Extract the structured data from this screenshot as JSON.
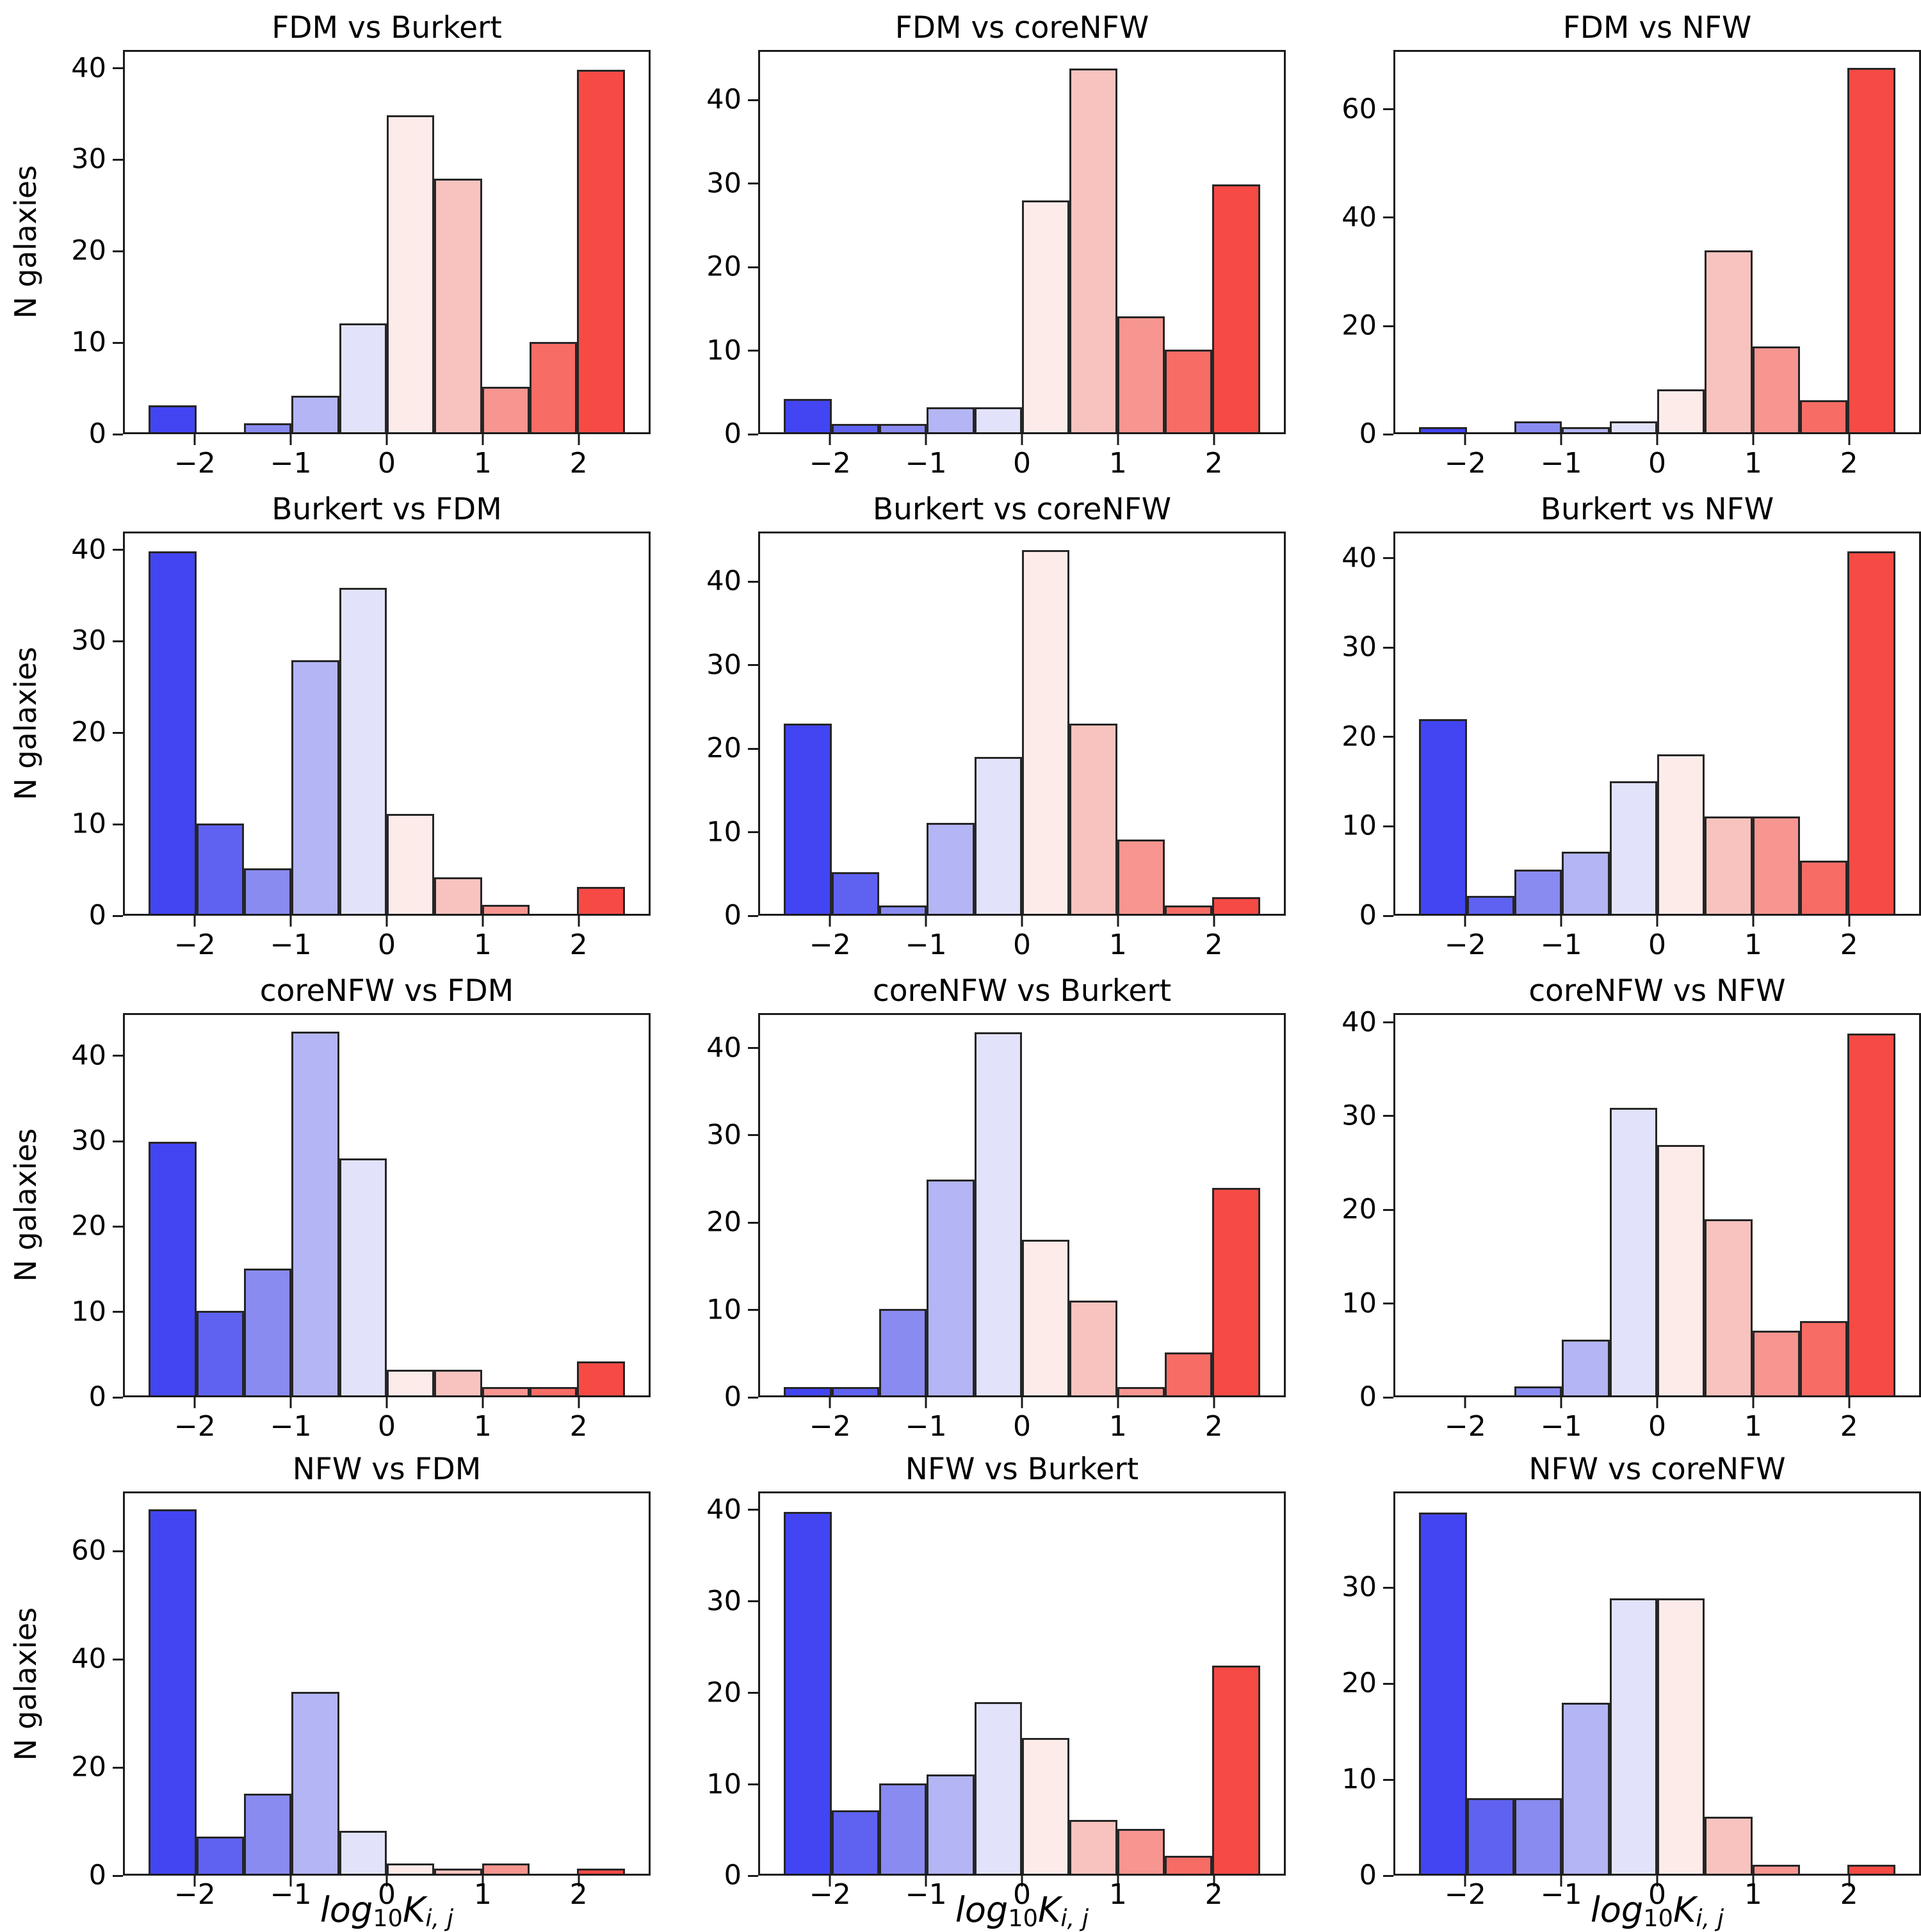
{
  "chart_data": {
    "type": "bar",
    "subtype": "histogram-grid",
    "grid": {
      "rows": 4,
      "cols": 3
    },
    "ylabel": "N galaxies",
    "xlabel": "log10 K_i,j",
    "xlabel_parts": {
      "base": "log",
      "base_sub": "10",
      "var": "K",
      "var_sub": "i, j"
    },
    "bin_edges": [
      -2.5,
      -2.0,
      -1.5,
      -1.0,
      -0.5,
      0.0,
      0.5,
      1.0,
      1.5,
      2.0,
      2.5
    ],
    "bin_width": 0.5,
    "xlim": [
      -2.75,
      2.75
    ],
    "x_tick_values": [
      -2,
      -1,
      0,
      1,
      2
    ],
    "x_tick_labels": [
      "−2",
      "−1",
      "0",
      "1",
      "2"
    ],
    "grid_lines": "off",
    "legend": "none",
    "bar_colors": [
      "#4245f1",
      "#5f62f1",
      "#898bf0",
      "#b4b5f4",
      "#e2e3fa",
      "#fcebe9",
      "#f8c3be",
      "#f79590",
      "#f76c65",
      "#f64a45"
    ],
    "edge_color": "#262626",
    "panels": [
      {
        "title": "FDM vs Burkert",
        "row": 0,
        "col": 0,
        "yticks": [
          0,
          10,
          20,
          30,
          40
        ],
        "ymax": 42,
        "values": [
          3,
          0,
          1,
          4,
          12,
          35,
          28,
          5,
          10,
          40
        ]
      },
      {
        "title": "FDM vs coreNFW",
        "row": 0,
        "col": 1,
        "yticks": [
          0,
          10,
          20,
          30,
          40
        ],
        "ymax": 46,
        "values": [
          4,
          1,
          1,
          3,
          3,
          28,
          44,
          14,
          10,
          30
        ]
      },
      {
        "title": "FDM vs NFW",
        "row": 0,
        "col": 2,
        "yticks": [
          0,
          20,
          40,
          60
        ],
        "ymax": 71,
        "values": [
          1,
          0,
          2,
          1,
          2,
          8,
          34,
          16,
          6,
          68
        ]
      },
      {
        "title": "Burkert vs FDM",
        "row": 1,
        "col": 0,
        "yticks": [
          0,
          10,
          20,
          30,
          40
        ],
        "ymax": 42,
        "values": [
          40,
          10,
          5,
          28,
          36,
          11,
          4,
          1,
          0,
          3
        ]
      },
      {
        "title": "Burkert vs coreNFW",
        "row": 1,
        "col": 1,
        "yticks": [
          0,
          10,
          20,
          30,
          40
        ],
        "ymax": 46,
        "values": [
          23,
          5,
          1,
          11,
          19,
          44,
          23,
          9,
          1,
          2
        ]
      },
      {
        "title": "Burkert vs NFW",
        "row": 1,
        "col": 2,
        "yticks": [
          0,
          10,
          20,
          30,
          40
        ],
        "ymax": 43,
        "values": [
          22,
          2,
          5,
          7,
          15,
          18,
          11,
          11,
          6,
          41
        ]
      },
      {
        "title": "coreNFW vs FDM",
        "row": 2,
        "col": 0,
        "yticks": [
          0,
          10,
          20,
          30,
          40
        ],
        "ymax": 45,
        "values": [
          30,
          10,
          15,
          43,
          28,
          3,
          3,
          1,
          1,
          4
        ]
      },
      {
        "title": "coreNFW vs Burkert",
        "row": 2,
        "col": 1,
        "yticks": [
          0,
          10,
          20,
          30,
          40
        ],
        "ymax": 44,
        "values": [
          1,
          1,
          10,
          25,
          42,
          18,
          11,
          1,
          5,
          24
        ]
      },
      {
        "title": "coreNFW vs NFW",
        "row": 2,
        "col": 2,
        "yticks": [
          0,
          10,
          20,
          30,
          40
        ],
        "ymax": 41,
        "values": [
          0,
          0,
          1,
          6,
          31,
          27,
          19,
          7,
          8,
          39
        ]
      },
      {
        "title": "NFW vs FDM",
        "row": 3,
        "col": 0,
        "yticks": [
          0,
          20,
          40,
          60
        ],
        "ymax": 71,
        "values": [
          68,
          7,
          15,
          34,
          8,
          2,
          1,
          2,
          0,
          1
        ]
      },
      {
        "title": "NFW vs Burkert",
        "row": 3,
        "col": 1,
        "yticks": [
          0,
          10,
          20,
          30,
          40
        ],
        "ymax": 42,
        "values": [
          40,
          7,
          10,
          11,
          19,
          15,
          6,
          5,
          2,
          23
        ]
      },
      {
        "title": "NFW vs coreNFW",
        "row": 3,
        "col": 2,
        "yticks": [
          0,
          10,
          20,
          30
        ],
        "ymax": 40,
        "values": [
          38,
          8,
          8,
          18,
          29,
          29,
          6,
          1,
          0,
          1
        ]
      }
    ]
  }
}
